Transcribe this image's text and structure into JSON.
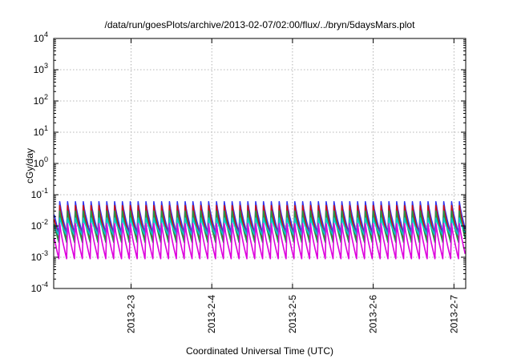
{
  "chart_data": {
    "type": "line",
    "title": "/data/run/goesPlots/archive/2013-02-07/02:00/flux/../bryn/5daysMars.plot",
    "xlabel": "Coordinated Universal Time (UTC)",
    "ylabel": "cGy/day",
    "yscale": "log",
    "ylim": [
      0.0001,
      10000
    ],
    "y_ticks": [
      {
        "base": "10",
        "exp": "-4",
        "value": 0.0001
      },
      {
        "base": "10",
        "exp": "-3",
        "value": 0.001
      },
      {
        "base": "10",
        "exp": "-2",
        "value": 0.01
      },
      {
        "base": "10",
        "exp": "-1",
        "value": 0.1
      },
      {
        "base": "10",
        "exp": "0",
        "value": 1
      },
      {
        "base": "10",
        "exp": "1",
        "value": 10
      },
      {
        "base": "10",
        "exp": "2",
        "value": 100
      },
      {
        "base": "10",
        "exp": "3",
        "value": 1000
      },
      {
        "base": "10",
        "exp": "4",
        "value": 10000
      }
    ],
    "xlim": [
      "2013-02-02T01:00",
      "2013-02-07T03:30"
    ],
    "x_ticks": [
      {
        "label": "2013-2-3",
        "value": "2013-02-03T00:00"
      },
      {
        "label": "2013-2-4",
        "value": "2013-02-04T00:00"
      },
      {
        "label": "2013-2-5",
        "value": "2013-02-05T00:00"
      },
      {
        "label": "2013-2-6",
        "value": "2013-02-06T00:00"
      },
      {
        "label": "2013-2-7",
        "value": "2013-02-07T00:00"
      }
    ],
    "grid": true,
    "legend": "none",
    "cycles_per_day": 10.3,
    "series": [
      {
        "color": "#3333ee",
        "peak": 0.06,
        "trough": 0.006
      },
      {
        "color": "#cc1111",
        "peak": 0.045,
        "trough": 0.004
      },
      {
        "color": "#229944",
        "peak": 0.03,
        "trough": 0.003
      },
      {
        "color": "#00cccc",
        "peak": 0.018,
        "trough": 0.005
      },
      {
        "color": "#dd00dd",
        "peak": 0.012,
        "trough": 0.0009
      }
    ]
  }
}
